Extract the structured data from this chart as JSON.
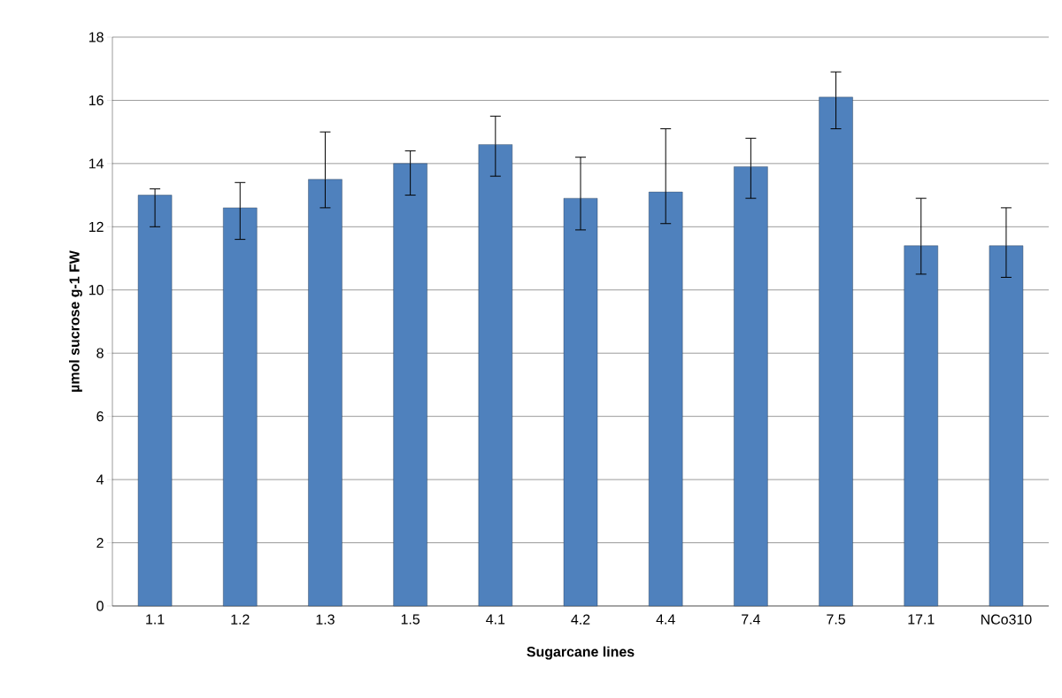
{
  "chart_data": {
    "type": "bar",
    "xlabel": "Sugarcane lines",
    "ylabel": "µmol sucrose g-1 FW",
    "categories": [
      "1.1",
      "1.2",
      "1.3",
      "1.5",
      "4.1",
      "4.2",
      "4.4",
      "7.4",
      "7.5",
      "17.1",
      "NCo310"
    ],
    "values": [
      13.0,
      12.6,
      13.5,
      14.0,
      14.6,
      12.9,
      13.1,
      13.9,
      16.1,
      11.4,
      11.4
    ],
    "errors": [
      [
        12.0,
        13.2
      ],
      [
        11.6,
        13.4
      ],
      [
        12.6,
        15.0
      ],
      [
        13.0,
        14.4
      ],
      [
        13.6,
        15.5
      ],
      [
        11.9,
        14.2
      ],
      [
        12.1,
        15.1
      ],
      [
        12.9,
        14.8
      ],
      [
        15.1,
        16.9
      ],
      [
        10.5,
        12.9
      ],
      [
        10.4,
        12.6
      ]
    ],
    "color": "#4f81bd",
    "ylim": [
      0,
      18
    ],
    "yticks": [
      0,
      2,
      4,
      6,
      8,
      10,
      12,
      14,
      16,
      18
    ],
    "grid": "y"
  }
}
